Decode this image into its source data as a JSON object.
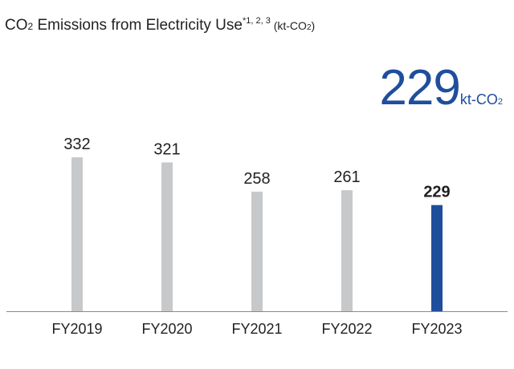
{
  "header": {
    "title_main": "CO",
    "title_sub": "2",
    "title_rest": " Emissions from Electricity Use",
    "title_notes": "*1, 2, 3",
    "title_unit_open": " (kt-CO",
    "title_unit_sub": "2",
    "title_unit_close": ")"
  },
  "highlight": {
    "value": "229",
    "unit": "kt-CO",
    "unit_sub": "2",
    "color": "#1f4e9c"
  },
  "chart_data": {
    "type": "bar",
    "categories": [
      "FY2019",
      "FY2020",
      "FY2021",
      "FY2022",
      "FY2023"
    ],
    "values": [
      332,
      321,
      258,
      261,
      229
    ],
    "ylim": [
      0,
      400
    ],
    "grid": false,
    "highlight_index": 4,
    "colors": {
      "default": "#c7c8ca",
      "highlight": "#1f4e9c",
      "axis": "#8a8a8a"
    }
  }
}
